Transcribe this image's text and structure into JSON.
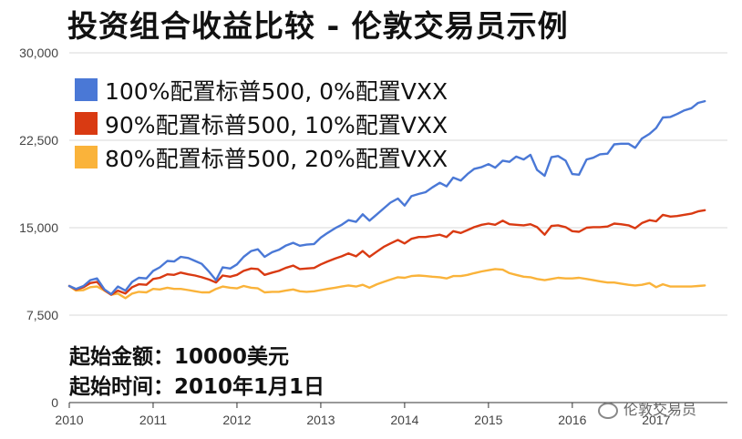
{
  "title": "投资组合收益比较 - 伦敦交易员示例",
  "notes": {
    "start_amount": "起始金额：10000美元",
    "start_time": "起始时间：2010年1月1日"
  },
  "watermark": "伦敦交易员",
  "colors": {
    "blue": "#4a78d6",
    "red": "#d93a12",
    "orange": "#fab33a"
  },
  "chart_data": {
    "type": "line",
    "title": "投资组合收益比较 - 伦敦交易员示例",
    "xlabel": "",
    "ylabel": "",
    "ylim": [
      0,
      30000
    ],
    "yticks": [
      0,
      7500,
      15000,
      22500,
      30000
    ],
    "ytick_labels": [
      "0",
      "7,500",
      "15,000",
      "22,500",
      "30,000"
    ],
    "xlim": [
      2010.0,
      2017.85
    ],
    "xticks": [
      2010,
      2011,
      2012,
      2013,
      2014,
      2015,
      2016,
      2017
    ],
    "xtick_labels": [
      "2010",
      "2011",
      "2012",
      "2013",
      "2014",
      "2015",
      "2016",
      "2017"
    ],
    "grid": true,
    "legend": "top-left",
    "series": [
      {
        "name": "100%配置标普500, 0%配置VXX",
        "color": "#4a78d6",
        "points": [
          [
            2010.0,
            10000
          ],
          [
            2010.08,
            9750
          ],
          [
            2010.17,
            10000
          ],
          [
            2010.25,
            10500
          ],
          [
            2010.33,
            10650
          ],
          [
            2010.42,
            9700
          ],
          [
            2010.5,
            9300
          ],
          [
            2010.58,
            9950
          ],
          [
            2010.67,
            9600
          ],
          [
            2010.75,
            10350
          ],
          [
            2010.83,
            10700
          ],
          [
            2010.92,
            10650
          ],
          [
            2011.0,
            11300
          ],
          [
            2011.08,
            11600
          ],
          [
            2011.17,
            12150
          ],
          [
            2011.25,
            12100
          ],
          [
            2011.33,
            12500
          ],
          [
            2011.42,
            12400
          ],
          [
            2011.5,
            12150
          ],
          [
            2011.58,
            11900
          ],
          [
            2011.67,
            11200
          ],
          [
            2011.75,
            10500
          ],
          [
            2011.83,
            11600
          ],
          [
            2011.92,
            11500
          ],
          [
            2012.0,
            11850
          ],
          [
            2012.08,
            12500
          ],
          [
            2012.17,
            13000
          ],
          [
            2012.25,
            13150
          ],
          [
            2012.33,
            12500
          ],
          [
            2012.42,
            12900
          ],
          [
            2012.5,
            13100
          ],
          [
            2012.58,
            13450
          ],
          [
            2012.67,
            13700
          ],
          [
            2012.75,
            13450
          ],
          [
            2012.83,
            13550
          ],
          [
            2012.92,
            13600
          ],
          [
            2013.0,
            14150
          ],
          [
            2013.08,
            14550
          ],
          [
            2013.17,
            14950
          ],
          [
            2013.25,
            15250
          ],
          [
            2013.33,
            15650
          ],
          [
            2013.42,
            15500
          ],
          [
            2013.5,
            16150
          ],
          [
            2013.58,
            15600
          ],
          [
            2013.67,
            16150
          ],
          [
            2013.75,
            16650
          ],
          [
            2013.83,
            17150
          ],
          [
            2013.92,
            17500
          ],
          [
            2014.0,
            16900
          ],
          [
            2014.08,
            17700
          ],
          [
            2014.17,
            17900
          ],
          [
            2014.25,
            18050
          ],
          [
            2014.33,
            18450
          ],
          [
            2014.42,
            18850
          ],
          [
            2014.5,
            18550
          ],
          [
            2014.58,
            19300
          ],
          [
            2014.67,
            19050
          ],
          [
            2014.75,
            19600
          ],
          [
            2014.83,
            20050
          ],
          [
            2014.92,
            20200
          ],
          [
            2015.0,
            20450
          ],
          [
            2015.08,
            20150
          ],
          [
            2015.17,
            20750
          ],
          [
            2015.25,
            20650
          ],
          [
            2015.33,
            21100
          ],
          [
            2015.42,
            20850
          ],
          [
            2015.5,
            21250
          ],
          [
            2015.58,
            19950
          ],
          [
            2015.67,
            19450
          ],
          [
            2015.75,
            21050
          ],
          [
            2015.83,
            21150
          ],
          [
            2015.92,
            20750
          ],
          [
            2016.0,
            19600
          ],
          [
            2016.08,
            19550
          ],
          [
            2016.17,
            20850
          ],
          [
            2016.25,
            21000
          ],
          [
            2016.33,
            21300
          ],
          [
            2016.42,
            21350
          ],
          [
            2016.5,
            22150
          ],
          [
            2016.58,
            22200
          ],
          [
            2016.67,
            22200
          ],
          [
            2016.75,
            21850
          ],
          [
            2016.83,
            22650
          ],
          [
            2016.92,
            23050
          ],
          [
            2017.0,
            23550
          ],
          [
            2017.08,
            24450
          ],
          [
            2017.17,
            24500
          ],
          [
            2017.25,
            24750
          ],
          [
            2017.33,
            25050
          ],
          [
            2017.42,
            25250
          ],
          [
            2017.5,
            25700
          ],
          [
            2017.58,
            25850
          ]
        ]
      },
      {
        "name": "90%配置标普500, 10%配置VXX",
        "color": "#d93a12",
        "points": [
          [
            2010.0,
            10000
          ],
          [
            2010.08,
            9700
          ],
          [
            2010.17,
            9900
          ],
          [
            2010.25,
            10250
          ],
          [
            2010.33,
            10350
          ],
          [
            2010.42,
            9650
          ],
          [
            2010.5,
            9250
          ],
          [
            2010.58,
            9600
          ],
          [
            2010.67,
            9350
          ],
          [
            2010.75,
            9900
          ],
          [
            2010.83,
            10150
          ],
          [
            2010.92,
            10100
          ],
          [
            2011.0,
            10600
          ],
          [
            2011.08,
            10700
          ],
          [
            2011.17,
            11000
          ],
          [
            2011.25,
            10950
          ],
          [
            2011.33,
            11150
          ],
          [
            2011.42,
            11000
          ],
          [
            2011.5,
            10900
          ],
          [
            2011.58,
            10750
          ],
          [
            2011.67,
            10550
          ],
          [
            2011.75,
            10300
          ],
          [
            2011.83,
            10900
          ],
          [
            2011.92,
            10800
          ],
          [
            2012.0,
            10950
          ],
          [
            2012.08,
            11300
          ],
          [
            2012.17,
            11500
          ],
          [
            2012.25,
            11450
          ],
          [
            2012.33,
            10950
          ],
          [
            2012.42,
            11150
          ],
          [
            2012.5,
            11300
          ],
          [
            2012.58,
            11550
          ],
          [
            2012.67,
            11750
          ],
          [
            2012.75,
            11450
          ],
          [
            2012.83,
            11500
          ],
          [
            2012.92,
            11550
          ],
          [
            2013.0,
            11850
          ],
          [
            2013.08,
            12100
          ],
          [
            2013.17,
            12350
          ],
          [
            2013.25,
            12550
          ],
          [
            2013.33,
            12800
          ],
          [
            2013.42,
            12550
          ],
          [
            2013.5,
            13000
          ],
          [
            2013.58,
            12500
          ],
          [
            2013.67,
            12950
          ],
          [
            2013.75,
            13350
          ],
          [
            2013.83,
            13650
          ],
          [
            2013.92,
            13950
          ],
          [
            2014.0,
            13650
          ],
          [
            2014.08,
            14050
          ],
          [
            2014.17,
            14200
          ],
          [
            2014.25,
            14200
          ],
          [
            2014.33,
            14300
          ],
          [
            2014.42,
            14400
          ],
          [
            2014.5,
            14200
          ],
          [
            2014.58,
            14700
          ],
          [
            2014.67,
            14550
          ],
          [
            2014.75,
            14800
          ],
          [
            2014.83,
            15050
          ],
          [
            2014.92,
            15250
          ],
          [
            2015.0,
            15350
          ],
          [
            2015.08,
            15250
          ],
          [
            2015.17,
            15600
          ],
          [
            2015.25,
            15300
          ],
          [
            2015.33,
            15250
          ],
          [
            2015.42,
            15200
          ],
          [
            2015.5,
            15300
          ],
          [
            2015.58,
            15050
          ],
          [
            2015.67,
            14400
          ],
          [
            2015.75,
            15150
          ],
          [
            2015.83,
            15200
          ],
          [
            2015.92,
            15050
          ],
          [
            2016.0,
            14700
          ],
          [
            2016.08,
            14650
          ],
          [
            2016.17,
            15000
          ],
          [
            2016.25,
            15050
          ],
          [
            2016.33,
            15050
          ],
          [
            2016.42,
            15100
          ],
          [
            2016.5,
            15350
          ],
          [
            2016.58,
            15300
          ],
          [
            2016.67,
            15200
          ],
          [
            2016.75,
            14950
          ],
          [
            2016.83,
            15400
          ],
          [
            2016.92,
            15650
          ],
          [
            2017.0,
            15550
          ],
          [
            2017.08,
            16100
          ],
          [
            2017.17,
            15950
          ],
          [
            2017.25,
            16000
          ],
          [
            2017.33,
            16100
          ],
          [
            2017.42,
            16200
          ],
          [
            2017.5,
            16400
          ],
          [
            2017.58,
            16500
          ]
        ]
      },
      {
        "name": "80%配置标普500, 20%配置VXX",
        "color": "#fab33a",
        "points": [
          [
            2010.0,
            10000
          ],
          [
            2010.08,
            9600
          ],
          [
            2010.17,
            9650
          ],
          [
            2010.25,
            9900
          ],
          [
            2010.33,
            9950
          ],
          [
            2010.42,
            9600
          ],
          [
            2010.5,
            9250
          ],
          [
            2010.58,
            9350
          ],
          [
            2010.67,
            8950
          ],
          [
            2010.75,
            9350
          ],
          [
            2010.83,
            9500
          ],
          [
            2010.92,
            9450
          ],
          [
            2011.0,
            9750
          ],
          [
            2011.08,
            9700
          ],
          [
            2011.17,
            9850
          ],
          [
            2011.25,
            9750
          ],
          [
            2011.33,
            9750
          ],
          [
            2011.42,
            9650
          ],
          [
            2011.5,
            9550
          ],
          [
            2011.58,
            9450
          ],
          [
            2011.67,
            9450
          ],
          [
            2011.75,
            9750
          ],
          [
            2011.83,
            9950
          ],
          [
            2011.92,
            9850
          ],
          [
            2012.0,
            9800
          ],
          [
            2012.08,
            10000
          ],
          [
            2012.17,
            9850
          ],
          [
            2012.25,
            9800
          ],
          [
            2012.33,
            9450
          ],
          [
            2012.42,
            9500
          ],
          [
            2012.5,
            9500
          ],
          [
            2012.58,
            9600
          ],
          [
            2012.67,
            9700
          ],
          [
            2012.75,
            9550
          ],
          [
            2012.83,
            9500
          ],
          [
            2012.92,
            9550
          ],
          [
            2013.0,
            9650
          ],
          [
            2013.08,
            9750
          ],
          [
            2013.17,
            9850
          ],
          [
            2013.25,
            9950
          ],
          [
            2013.33,
            10050
          ],
          [
            2013.42,
            9950
          ],
          [
            2013.5,
            10100
          ],
          [
            2013.58,
            9850
          ],
          [
            2013.67,
            10150
          ],
          [
            2013.75,
            10350
          ],
          [
            2013.83,
            10550
          ],
          [
            2013.92,
            10750
          ],
          [
            2014.0,
            10700
          ],
          [
            2014.08,
            10850
          ],
          [
            2014.17,
            10900
          ],
          [
            2014.25,
            10850
          ],
          [
            2014.33,
            10800
          ],
          [
            2014.42,
            10750
          ],
          [
            2014.5,
            10650
          ],
          [
            2014.58,
            10850
          ],
          [
            2014.67,
            10850
          ],
          [
            2014.75,
            10950
          ],
          [
            2014.83,
            11100
          ],
          [
            2014.92,
            11250
          ],
          [
            2015.0,
            11350
          ],
          [
            2015.08,
            11450
          ],
          [
            2015.17,
            11400
          ],
          [
            2015.25,
            11100
          ],
          [
            2015.33,
            10950
          ],
          [
            2015.42,
            10800
          ],
          [
            2015.5,
            10750
          ],
          [
            2015.58,
            10600
          ],
          [
            2015.67,
            10500
          ],
          [
            2015.75,
            10600
          ],
          [
            2015.83,
            10700
          ],
          [
            2015.92,
            10650
          ],
          [
            2016.0,
            10650
          ],
          [
            2016.08,
            10700
          ],
          [
            2016.17,
            10600
          ],
          [
            2016.25,
            10500
          ],
          [
            2016.33,
            10400
          ],
          [
            2016.42,
            10300
          ],
          [
            2016.5,
            10300
          ],
          [
            2016.58,
            10200
          ],
          [
            2016.67,
            10100
          ],
          [
            2016.75,
            10050
          ],
          [
            2016.83,
            10100
          ],
          [
            2016.92,
            10250
          ],
          [
            2017.0,
            9900
          ],
          [
            2017.08,
            10150
          ],
          [
            2017.17,
            9950
          ],
          [
            2017.25,
            9950
          ],
          [
            2017.33,
            9950
          ],
          [
            2017.42,
            9950
          ],
          [
            2017.5,
            10000
          ],
          [
            2017.58,
            10050
          ]
        ]
      }
    ]
  }
}
